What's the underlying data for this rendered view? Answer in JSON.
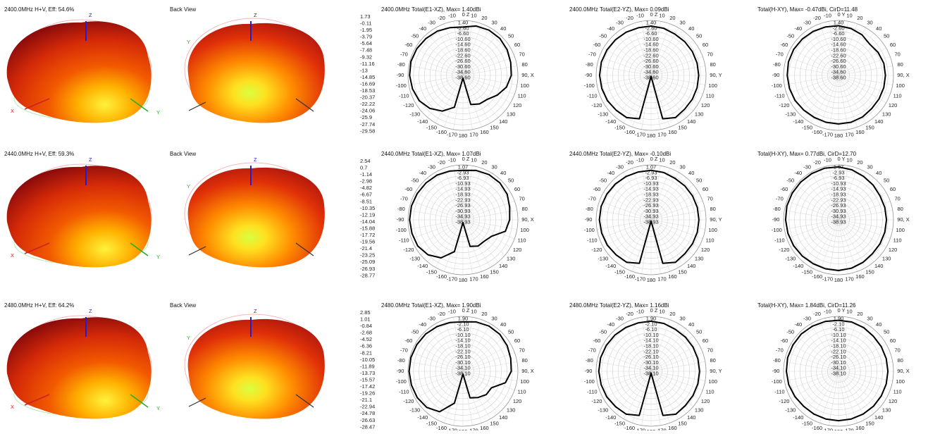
{
  "axes": {
    "z": "Z",
    "x": "X",
    "y": "Y"
  },
  "angle_ticks": [
    -170,
    -160,
    -150,
    -140,
    -130,
    -120,
    -110,
    -100,
    -90,
    -80,
    -70,
    -60,
    -50,
    -40,
    -30,
    -20,
    -10,
    10,
    20,
    30,
    40,
    50,
    60,
    70,
    80,
    100,
    110,
    120,
    130,
    140,
    150,
    160,
    170,
    180
  ],
  "pattern_angles": [
    0,
    15,
    30,
    45,
    60,
    75,
    90,
    105,
    120,
    135,
    150,
    165,
    180,
    195,
    210,
    225,
    240,
    255,
    270,
    285,
    300,
    315,
    330,
    345
  ],
  "rows": [
    {
      "view3d_title": "2400.0MHz H+V, Eff: 54.6%",
      "back_title": "Back View",
      "scale": [
        "1.73",
        "-0.11",
        "-1.95",
        "-3.79",
        "-5.64",
        "-7.48",
        "-9.32",
        "-11.16",
        "-13",
        "-14.85",
        "-16.69",
        "-18.53",
        "-20.37",
        "-22.22",
        "-24.06",
        "-25.9",
        "-27.74",
        "-29.58"
      ],
      "r_range": [
        -38.6,
        1.4
      ],
      "ring_labels": [
        "1.40",
        "-2.60",
        "-6.60",
        "-10.60",
        "-14.60",
        "-18.60",
        "-22.60",
        "-26.60",
        "-30.60",
        "-34.60",
        "-38.60"
      ],
      "polars": [
        {
          "title": "2400.0MHz Total(E1-XZ), Max= 1.40dBi",
          "zero_label": "0 Z",
          "ninety_label": "90, X",
          "values": [
            -3.4,
            -1.4,
            -0.6,
            -0.6,
            -1.4,
            -2.6,
            -3.4,
            -5.8,
            -9.8,
            -13.8,
            -14.6,
            -16.6,
            -36.6,
            -14.6,
            -8.6,
            -4.6,
            -1.8,
            -0.6,
            0.2,
            0.6,
            0.2,
            -0.6,
            -1.4,
            -2.6
          ]
        },
        {
          "title": "2400.0MHz Total(E2-YZ), Max= 0.09dBi",
          "zero_label": "0 Z",
          "ninety_label": "90, Y",
          "values": [
            -2.71,
            -3.11,
            -3.91,
            -3.91,
            -3.91,
            -3.91,
            -3.91,
            -3.91,
            -3.91,
            -3.91,
            -3.11,
            -5.91,
            -37.91,
            -5.91,
            -3.11,
            -2.71,
            -1.91,
            -1.51,
            -1.11,
            -1.11,
            -1.51,
            -1.91,
            -2.31,
            -2.71
          ]
        },
        {
          "title": "Total(H-XY), Max= -0.47dBi, CirD=11.48",
          "zero_label": "0 Y",
          "ninety_label": "90, X",
          "values": [
            -2.47,
            -3.27,
            -4.47,
            -6.47,
            -5.27,
            -4.47,
            -4.47,
            -4.47,
            -4.47,
            -4.47,
            -3.67,
            -3.27,
            -3.27,
            -3.27,
            -3.27,
            -2.87,
            -2.07,
            -1.67,
            -1.27,
            -0.87,
            -0.87,
            -1.27,
            -1.67,
            -2.07
          ]
        }
      ]
    },
    {
      "view3d_title": "2440.0MHz H+V, Eff: 59.3%",
      "back_title": "Back View",
      "scale": [
        "2.54",
        "0.7",
        "-1.14",
        "-2.98",
        "-4.82",
        "-6.67",
        "-8.51",
        "-10.35",
        "-12.19",
        "-14.04",
        "-15.88",
        "-17.72",
        "-19.56",
        "-21.4",
        "-23.25",
        "-25.09",
        "-26.93",
        "-28.77"
      ],
      "r_range": [
        -38.93,
        1.07
      ],
      "ring_labels": [
        "1.07",
        "-2.93",
        "-6.93",
        "-10.93",
        "-14.93",
        "-18.93",
        "-22.93",
        "-26.93",
        "-30.93",
        "-34.93",
        "-38.93"
      ],
      "polars": [
        {
          "title": "2440.0MHz Total(E1-XZ), Max= 1.07dBi",
          "zero_label": "0 Z",
          "ninety_label": "90, X",
          "values": [
            -2.93,
            -1.73,
            -0.93,
            -0.93,
            -1.73,
            -3.73,
            -4.93,
            -6.93,
            -14.93,
            -16.93,
            -16.93,
            -18.93,
            -36.93,
            -14.93,
            -6.93,
            -2.93,
            -0.93,
            -0.53,
            -0.13,
            -0.13,
            -0.53,
            -0.93,
            -1.33,
            -2.13
          ]
        },
        {
          "title": "2440.0MHz Total(E2-YZ), Max= -0.10dBi",
          "zero_label": "0 Z",
          "ninety_label": "90, Y",
          "values": [
            -2.9,
            -3.3,
            -4.1,
            -4.1,
            -4.1,
            -4.1,
            -4.1,
            -4.1,
            -4.1,
            -4.1,
            -3.3,
            -6.1,
            -38.1,
            -6.1,
            -3.3,
            -2.9,
            -2.1,
            -1.7,
            -1.3,
            -1.3,
            -1.7,
            -2.1,
            -2.5,
            -2.9
          ]
        },
        {
          "title": "Total(H-XY), Max= 0.77dBi, CirD=12.70",
          "zero_label": "0 Y",
          "ninety_label": "90, X",
          "values": [
            -0.43,
            -1.23,
            -2.43,
            -3.23,
            -4.03,
            -4.03,
            -4.03,
            -4.03,
            -4.03,
            -4.03,
            -3.23,
            -2.43,
            -2.03,
            -2.03,
            -2.03,
            -1.63,
            -1.23,
            -0.83,
            -0.43,
            -0.03,
            -0.03,
            -0.03,
            -0.03,
            -0.03
          ]
        }
      ]
    },
    {
      "view3d_title": "2480.0MHz H+V, Eff: 64.2%",
      "back_title": "Back View",
      "scale": [
        "2.85",
        "1.01",
        "-0.84",
        "-2.68",
        "-4.52",
        "-6.36",
        "-8.21",
        "-10.05",
        "-11.89",
        "-13.73",
        "-15.57",
        "-17.42",
        "-19.26",
        "-21.1",
        "-22.94",
        "-24.78",
        "-26.63",
        "-28.47"
      ],
      "r_range": [
        -38.1,
        1.9
      ],
      "ring_labels": [
        "1.90",
        "-2.10",
        "-6.10",
        "-10.10",
        "-14.10",
        "-18.10",
        "-22.10",
        "-26.10",
        "-30.10",
        "-34.10",
        "-38.10"
      ],
      "polars": [
        {
          "title": "2480.0MHz Total(E1-XZ), Max= 1.90dBi",
          "zero_label": "0 Z",
          "ninety_label": "90, X",
          "values": [
            -2.1,
            -0.9,
            -0.1,
            -0.1,
            -0.9,
            -2.1,
            -2.9,
            -6.1,
            -14.1,
            -14.1,
            -16.1,
            -18.1,
            -36.1,
            -14.1,
            -4.1,
            -0.9,
            0.3,
            0.7,
            1.1,
            1.1,
            0.7,
            0.3,
            -0.5,
            -1.3
          ]
        },
        {
          "title": "2480.0MHz Total(E2-YZ), Max= 1.16dBi",
          "zero_label": "0 Z",
          "ninety_label": "90, Y",
          "values": [
            -1.64,
            -2.04,
            -2.84,
            -2.84,
            -2.84,
            -2.84,
            -2.84,
            -2.84,
            -2.84,
            -2.84,
            -2.04,
            -4.84,
            -36.84,
            -4.84,
            -2.04,
            -1.64,
            -0.84,
            -0.44,
            -0.04,
            -0.04,
            -0.44,
            -0.84,
            -1.24,
            -1.64
          ]
        },
        {
          "title": "Total(H-XY), Max= 1.84dBi, CirD=11.26",
          "zero_label": "0 Y",
          "ninety_label": "90, X",
          "values": [
            -0.96,
            -0.96,
            -1.36,
            -2.16,
            -2.16,
            -2.16,
            -2.16,
            -2.16,
            -2.16,
            -2.16,
            -2.16,
            -2.16,
            -2.16,
            -2.16,
            -2.16,
            -2.16,
            -1.36,
            -0.56,
            -0.16,
            0.24,
            0.24,
            0.24,
            -0.16,
            -0.56
          ]
        }
      ]
    }
  ]
}
